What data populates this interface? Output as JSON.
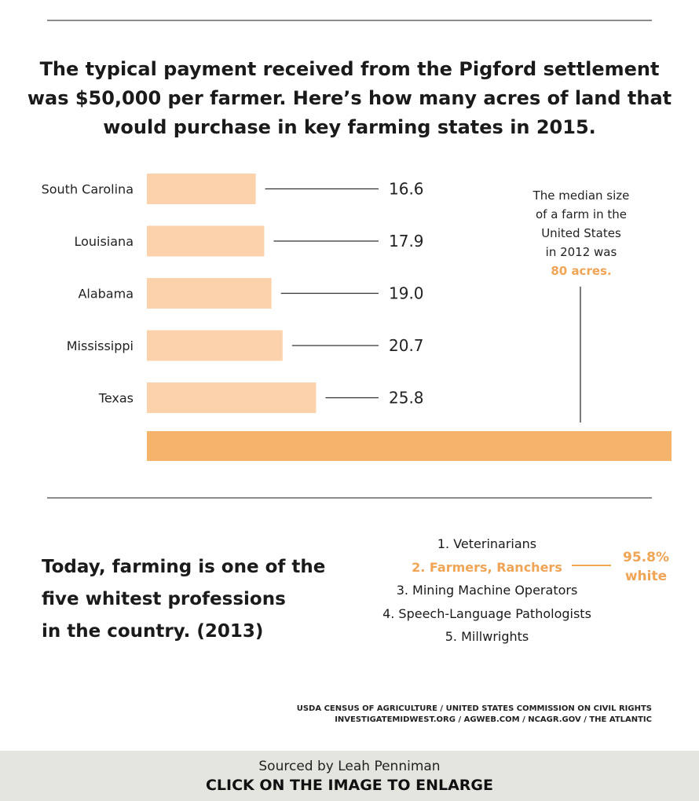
{
  "headline": "The typical payment received from the Pigford settlement was $50,000 per farmer. Here’s how many acres of land that would purchase in key farming states in 2015.",
  "chart_data": {
    "type": "bar",
    "orientation": "horizontal",
    "categories": [
      "South Carolina",
      "Louisiana",
      "Alabama",
      "Mississippi",
      "Texas"
    ],
    "values": [
      16.6,
      17.9,
      19.0,
      20.7,
      25.8
    ],
    "value_labels": [
      "16.6",
      "17.9",
      "19.0",
      "20.7",
      "25.8"
    ],
    "reference_bar": {
      "value": 80
    },
    "bar_color": "#fbd2ab",
    "reference_color": "#f5b36b",
    "title": "",
    "xlabel": "",
    "ylabel": ""
  },
  "median_note": {
    "lines": [
      "The median size",
      "of a farm in the",
      "United States",
      "in 2012 was"
    ],
    "highlight": "80 acres."
  },
  "whitest": {
    "title_lines": [
      "Today, farming is one of the",
      "five whitest professions",
      "in the country. (2013)"
    ],
    "professions": [
      "1. Veterinarians",
      "2. Farmers, Ranchers",
      "3. Mining Machine Operators",
      "4. Speech-Language Pathologists",
      "5. Millwrights"
    ],
    "highlight_index": 1,
    "pct_lines": [
      "95.8%",
      "white"
    ],
    "accent_color": "#f0a455"
  },
  "sources": [
    "USDA CENSUS OF AGRICULTURE / UNITED STATES COMMISSION ON CIVIL RIGHTS",
    "INVESTIGATEMIDWEST.ORG / AGWEB.COM / NCAGR.GOV / THE ATLANTIC"
  ],
  "footer": {
    "credit": "Sourced by Leah Penniman",
    "cta": "CLICK ON THE IMAGE TO ENLARGE"
  }
}
